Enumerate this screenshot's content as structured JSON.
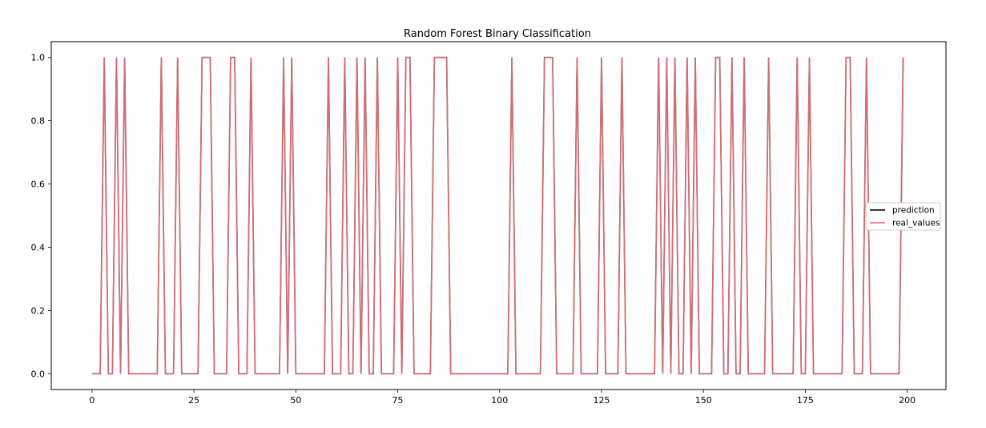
{
  "chart_data": {
    "type": "line",
    "title": "Random Forest Binary Classification",
    "xlabel": "",
    "ylabel": "",
    "xlim": [
      -10,
      209.5
    ],
    "ylim": [
      -0.05,
      1.05
    ],
    "x_ticks": [
      0,
      25,
      50,
      75,
      100,
      125,
      150,
      175,
      200
    ],
    "x_tick_labels": [
      "0",
      "25",
      "50",
      "75",
      "100",
      "125",
      "150",
      "175",
      "200"
    ],
    "y_ticks": [
      0.0,
      0.2,
      0.4,
      0.6,
      0.8,
      1.0
    ],
    "y_tick_labels": [
      "0.0",
      "0.2",
      "0.4",
      "0.6",
      "0.8",
      "1.0"
    ],
    "grid": false,
    "legend_position": "center-right",
    "x": [
      0,
      1,
      2,
      3,
      4,
      5,
      6,
      7,
      8,
      9,
      10,
      11,
      12,
      13,
      14,
      15,
      16,
      17,
      18,
      19,
      20,
      21,
      22,
      23,
      24,
      25,
      26,
      27,
      28,
      29,
      30,
      31,
      32,
      33,
      34,
      35,
      36,
      37,
      38,
      39,
      40,
      41,
      42,
      43,
      44,
      45,
      46,
      47,
      48,
      49,
      50,
      51,
      52,
      53,
      54,
      55,
      56,
      57,
      58,
      59,
      60,
      61,
      62,
      63,
      64,
      65,
      66,
      67,
      68,
      69,
      70,
      71,
      72,
      73,
      74,
      75,
      76,
      77,
      78,
      79,
      80,
      81,
      82,
      83,
      84,
      85,
      86,
      87,
      88,
      89,
      90,
      91,
      92,
      93,
      94,
      95,
      96,
      97,
      98,
      99,
      100,
      101,
      102,
      103,
      104,
      105,
      106,
      107,
      108,
      109,
      110,
      111,
      112,
      113,
      114,
      115,
      116,
      117,
      118,
      119,
      120,
      121,
      122,
      123,
      124,
      125,
      126,
      127,
      128,
      129,
      130,
      131,
      132,
      133,
      134,
      135,
      136,
      137,
      138,
      139,
      140,
      141,
      142,
      143,
      144,
      145,
      146,
      147,
      148,
      149,
      150,
      151,
      152,
      153,
      154,
      155,
      156,
      157,
      158,
      159,
      160,
      161,
      162,
      163,
      164,
      165,
      166,
      167,
      168,
      169,
      170,
      171,
      172,
      173,
      174,
      175,
      176,
      177,
      178,
      179,
      180,
      181,
      182,
      183,
      184,
      185,
      186,
      187,
      188,
      189,
      190,
      191,
      192,
      193,
      194,
      195,
      196,
      197,
      198,
      199
    ],
    "series": [
      {
        "name": "prediction",
        "color": "#1a1a1a",
        "values": [
          0,
          0,
          0,
          1,
          0,
          0,
          1,
          0,
          1,
          0,
          0,
          0,
          0,
          0,
          0,
          0,
          0,
          1,
          0,
          0,
          0,
          1,
          0,
          0,
          0,
          0,
          0,
          1,
          1,
          1,
          0,
          0,
          0,
          0,
          1,
          1,
          0,
          0,
          0,
          1,
          0,
          0,
          0,
          0,
          0,
          0,
          0,
          1,
          0,
          1,
          0,
          0,
          0,
          0,
          0,
          0,
          0,
          0,
          1,
          0,
          0,
          0,
          1,
          0,
          0,
          1,
          0,
          1,
          0,
          0,
          1,
          0,
          0,
          0,
          0,
          1,
          0,
          1,
          1,
          0,
          0,
          0,
          0,
          0,
          1,
          1,
          1,
          1,
          0,
          0,
          0,
          0,
          0,
          0,
          0,
          0,
          0,
          0,
          0,
          0,
          0,
          0,
          0,
          1,
          0,
          0,
          0,
          0,
          0,
          0,
          0,
          1,
          1,
          1,
          0,
          0,
          0,
          0,
          0,
          1,
          0,
          0,
          0,
          0,
          0,
          1,
          0,
          0,
          0,
          0,
          1,
          0,
          0,
          0,
          0,
          0,
          0,
          0,
          0,
          1,
          0,
          1,
          0,
          1,
          0,
          0,
          1,
          0,
          1,
          0,
          0,
          0,
          0,
          1,
          1,
          0,
          0,
          1,
          0,
          0,
          1,
          0,
          0,
          0,
          0,
          0,
          1,
          0,
          0,
          0,
          0,
          0,
          0,
          1,
          0,
          0,
          1,
          0,
          0,
          0,
          0,
          0,
          0,
          0,
          0,
          1,
          1,
          0,
          0,
          0,
          1,
          0,
          0,
          0,
          0,
          0,
          0,
          0,
          0,
          1
        ]
      },
      {
        "name": "real_values",
        "color": "#f07c86",
        "values": [
          0,
          0,
          0,
          1,
          0,
          0,
          1,
          0,
          1,
          0,
          0,
          0,
          0,
          0,
          0,
          0,
          0,
          1,
          0,
          0,
          0,
          1,
          0,
          0,
          0,
          0,
          0,
          1,
          1,
          1,
          0,
          0,
          0,
          0,
          1,
          1,
          0,
          0,
          0,
          1,
          0,
          0,
          0,
          0,
          0,
          0,
          0,
          1,
          0,
          1,
          0,
          0,
          0,
          0,
          0,
          0,
          0,
          0,
          1,
          0,
          0,
          0,
          1,
          0,
          0,
          1,
          0,
          1,
          0,
          0,
          1,
          0,
          0,
          0,
          0,
          1,
          0,
          1,
          1,
          0,
          0,
          0,
          0,
          0,
          1,
          1,
          1,
          1,
          0,
          0,
          0,
          0,
          0,
          0,
          0,
          0,
          0,
          0,
          0,
          0,
          0,
          0,
          0,
          1,
          0,
          0,
          0,
          0,
          0,
          0,
          0,
          1,
          1,
          1,
          0,
          0,
          0,
          0,
          0,
          1,
          0,
          0,
          0,
          0,
          0,
          1,
          0,
          0,
          0,
          0,
          1,
          0,
          0,
          0,
          0,
          0,
          0,
          0,
          0,
          1,
          0,
          1,
          0,
          1,
          0,
          0,
          1,
          0,
          1,
          0,
          0,
          0,
          0,
          1,
          1,
          0,
          0,
          1,
          0,
          0,
          1,
          0,
          0,
          0,
          0,
          0,
          1,
          0,
          0,
          0,
          0,
          0,
          0,
          1,
          0,
          0,
          1,
          0,
          0,
          0,
          0,
          0,
          0,
          0,
          0,
          1,
          1,
          0,
          0,
          0,
          1,
          0,
          0,
          0,
          0,
          0,
          0,
          0,
          0,
          1
        ]
      }
    ]
  }
}
